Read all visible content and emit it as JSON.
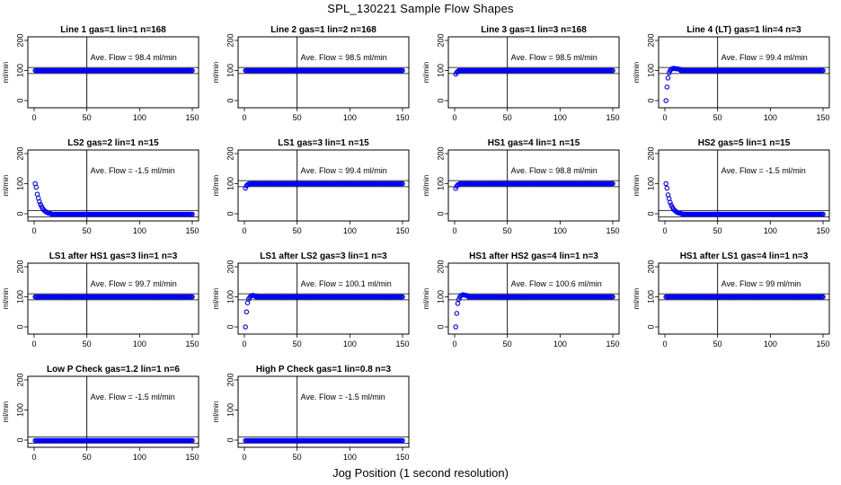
{
  "figure": {
    "title": "SPL_130221  Sample Flow Shapes",
    "xlabel": "Jog Position (1 second resolution)"
  },
  "chart_data": [
    {
      "type": "scatter",
      "title": "Line 1 gas=1 lin=1 n=168",
      "ylabel": "ml/min",
      "annotation": "Ave. Flow = 98.4  ml/min",
      "xlim": [
        0,
        150
      ],
      "ylim": [
        0,
        200
      ],
      "xticks": [
        0,
        50,
        100,
        150
      ],
      "yticks": [
        0,
        100,
        200
      ],
      "vline": 50,
      "hlines": [
        90,
        110
      ],
      "shape": "flat",
      "points": {
        "x_range": [
          1,
          150
        ],
        "steady_value": 100,
        "initial": []
      },
      "colors": {
        "points": "#0000ff"
      }
    },
    {
      "type": "scatter",
      "title": "Line 2 gas=1 lin=2 n=168",
      "ylabel": "ml/min",
      "annotation": "Ave. Flow = 98.5  ml/min",
      "xlim": [
        0,
        150
      ],
      "ylim": [
        0,
        200
      ],
      "xticks": [
        0,
        50,
        100,
        150
      ],
      "yticks": [
        0,
        100,
        200
      ],
      "vline": 50,
      "hlines": [
        90,
        110
      ],
      "shape": "flat",
      "points": {
        "x_range": [
          1,
          150
        ],
        "steady_value": 100,
        "initial": []
      },
      "colors": {
        "points": "#0000ff"
      }
    },
    {
      "type": "scatter",
      "title": "Line 3 gas=1 lin=3 n=168",
      "ylabel": "ml/min",
      "annotation": "Ave. Flow = 98.5  ml/min",
      "xlim": [
        0,
        150
      ],
      "ylim": [
        0,
        200
      ],
      "xticks": [
        0,
        50,
        100,
        150
      ],
      "yticks": [
        0,
        100,
        200
      ],
      "vline": 50,
      "hlines": [
        90,
        110
      ],
      "shape": "rise",
      "points": {
        "x_range": [
          1,
          150
        ],
        "steady_value": 100,
        "initial": [
          [
            1,
            88
          ],
          [
            2,
            94
          ],
          [
            3,
            97
          ]
        ]
      },
      "colors": {
        "points": "#0000ff"
      }
    },
    {
      "type": "scatter",
      "title": "Line 4 (LT) gas=1 lin=4 n=3",
      "ylabel": "ml/min",
      "annotation": "Ave. Flow = 99.4  ml/min",
      "xlim": [
        0,
        150
      ],
      "ylim": [
        0,
        200
      ],
      "xticks": [
        0,
        50,
        100,
        150
      ],
      "yticks": [
        0,
        100,
        200
      ],
      "vline": 50,
      "hlines": [
        90,
        110
      ],
      "shape": "rise",
      "points": {
        "x_range": [
          1,
          150
        ],
        "steady_value": 100,
        "initial": [
          [
            1,
            0
          ],
          [
            2,
            45
          ],
          [
            3,
            75
          ],
          [
            4,
            92
          ],
          [
            5,
            100
          ],
          [
            6,
            104
          ],
          [
            7,
            106
          ],
          [
            8,
            107
          ],
          [
            9,
            107
          ],
          [
            10,
            106
          ],
          [
            11,
            106
          ],
          [
            12,
            105
          ],
          [
            13,
            105
          ],
          [
            14,
            104
          ]
        ]
      },
      "colors": {
        "points": "#0000ff"
      }
    },
    {
      "type": "scatter",
      "title": "LS2 gas=2 lin=1 n=15",
      "ylabel": "ml/min",
      "annotation": "Ave. Flow = -1.5  ml/min",
      "xlim": [
        0,
        150
      ],
      "ylim": [
        0,
        200
      ],
      "xticks": [
        0,
        50,
        100,
        150
      ],
      "yticks": [
        0,
        100,
        200
      ],
      "vline": 50,
      "hlines": [
        -10,
        10
      ],
      "shape": "decay",
      "points": {
        "x_range": [
          1,
          150
        ],
        "steady_value": -1.5,
        "initial": [
          [
            1,
            100
          ],
          [
            2,
            88
          ],
          [
            3,
            65
          ],
          [
            4,
            52
          ],
          [
            5,
            40
          ],
          [
            6,
            31
          ],
          [
            7,
            24
          ],
          [
            8,
            18
          ],
          [
            9,
            13
          ],
          [
            10,
            10
          ],
          [
            11,
            7
          ],
          [
            12,
            5
          ],
          [
            13,
            3
          ],
          [
            14,
            2
          ],
          [
            15,
            1
          ],
          [
            16,
            0
          ]
        ]
      },
      "colors": {
        "points": "#0000ff"
      }
    },
    {
      "type": "scatter",
      "title": "LS1 gas=3 lin=1 n=15",
      "ylabel": "ml/min",
      "annotation": "Ave. Flow = 99.4  ml/min",
      "xlim": [
        0,
        150
      ],
      "ylim": [
        0,
        200
      ],
      "xticks": [
        0,
        50,
        100,
        150
      ],
      "yticks": [
        0,
        100,
        200
      ],
      "vline": 50,
      "hlines": [
        90,
        110
      ],
      "shape": "rise",
      "points": {
        "x_range": [
          1,
          150
        ],
        "steady_value": 100,
        "initial": [
          [
            1,
            85
          ],
          [
            2,
            93
          ],
          [
            3,
            97
          ],
          [
            4,
            99
          ]
        ]
      },
      "colors": {
        "points": "#0000ff"
      }
    },
    {
      "type": "scatter",
      "title": "HS1 gas=4 lin=1 n=15",
      "ylabel": "ml/min",
      "annotation": "Ave. Flow = 98.8  ml/min",
      "xlim": [
        0,
        150
      ],
      "ylim": [
        0,
        200
      ],
      "xticks": [
        0,
        50,
        100,
        150
      ],
      "yticks": [
        0,
        100,
        200
      ],
      "vline": 50,
      "hlines": [
        90,
        110
      ],
      "shape": "rise",
      "points": {
        "x_range": [
          1,
          150
        ],
        "steady_value": 100,
        "initial": [
          [
            1,
            84
          ],
          [
            2,
            92
          ],
          [
            3,
            96
          ],
          [
            4,
            98
          ]
        ]
      },
      "colors": {
        "points": "#0000ff"
      }
    },
    {
      "type": "scatter",
      "title": "HS2 gas=5 lin=1 n=15",
      "ylabel": "ml/min",
      "annotation": "Ave. Flow = -1.5  ml/min",
      "xlim": [
        0,
        150
      ],
      "ylim": [
        0,
        200
      ],
      "xticks": [
        0,
        50,
        100,
        150
      ],
      "yticks": [
        0,
        100,
        200
      ],
      "vline": 50,
      "hlines": [
        -10,
        10
      ],
      "shape": "decay",
      "points": {
        "x_range": [
          1,
          150
        ],
        "steady_value": -1.5,
        "initial": [
          [
            1,
            100
          ],
          [
            2,
            85
          ],
          [
            3,
            63
          ],
          [
            4,
            50
          ],
          [
            5,
            38
          ],
          [
            6,
            29
          ],
          [
            7,
            22
          ],
          [
            8,
            16
          ],
          [
            9,
            12
          ],
          [
            10,
            9
          ],
          [
            11,
            6
          ],
          [
            12,
            4
          ],
          [
            13,
            3
          ],
          [
            14,
            2
          ],
          [
            15,
            1
          ],
          [
            16,
            0
          ]
        ]
      },
      "colors": {
        "points": "#0000ff"
      }
    },
    {
      "type": "scatter",
      "title": "LS1 after HS1 gas=3 lin=1 n=3",
      "ylabel": "ml/min",
      "annotation": "Ave. Flow = 99.7  ml/min",
      "xlim": [
        0,
        150
      ],
      "ylim": [
        0,
        200
      ],
      "xticks": [
        0,
        50,
        100,
        150
      ],
      "yticks": [
        0,
        100,
        200
      ],
      "vline": 50,
      "hlines": [
        90,
        110
      ],
      "shape": "flat",
      "points": {
        "x_range": [
          1,
          150
        ],
        "steady_value": 100,
        "initial": []
      },
      "colors": {
        "points": "#0000ff"
      }
    },
    {
      "type": "scatter",
      "title": "LS1 after LS2 gas=3 lin=1 n=3",
      "ylabel": "ml/min",
      "annotation": "Ave. Flow = 100.1  ml/min",
      "xlim": [
        0,
        150
      ],
      "ylim": [
        0,
        200
      ],
      "xticks": [
        0,
        50,
        100,
        150
      ],
      "yticks": [
        0,
        100,
        200
      ],
      "vline": 50,
      "hlines": [
        90,
        110
      ],
      "shape": "rise",
      "points": {
        "x_range": [
          1,
          150
        ],
        "steady_value": 100,
        "initial": [
          [
            1,
            0
          ],
          [
            2,
            50
          ],
          [
            3,
            80
          ],
          [
            4,
            92
          ],
          [
            5,
            98
          ],
          [
            6,
            102
          ],
          [
            7,
            104
          ],
          [
            8,
            105
          ],
          [
            9,
            104
          ],
          [
            10,
            103
          ]
        ]
      },
      "colors": {
        "points": "#0000ff"
      }
    },
    {
      "type": "scatter",
      "title": "HS1 after HS2 gas=4 lin=1 n=3",
      "ylabel": "ml/min",
      "annotation": "Ave. Flow = 100.6  ml/min",
      "xlim": [
        0,
        150
      ],
      "ylim": [
        0,
        200
      ],
      "xticks": [
        0,
        50,
        100,
        150
      ],
      "yticks": [
        0,
        100,
        200
      ],
      "vline": 50,
      "hlines": [
        90,
        110
      ],
      "shape": "rise",
      "points": {
        "x_range": [
          1,
          150
        ],
        "steady_value": 100,
        "initial": [
          [
            1,
            0
          ],
          [
            2,
            45
          ],
          [
            3,
            78
          ],
          [
            4,
            92
          ],
          [
            5,
            100
          ],
          [
            6,
            104
          ],
          [
            7,
            106
          ],
          [
            8,
            107
          ],
          [
            9,
            106
          ],
          [
            10,
            105
          ],
          [
            11,
            105
          ],
          [
            12,
            104
          ]
        ]
      },
      "colors": {
        "points": "#0000ff"
      }
    },
    {
      "type": "scatter",
      "title": "HS1 after LS1 gas=4 lin=1 n=3",
      "ylabel": "ml/min",
      "annotation": "Ave. Flow = 99  ml/min",
      "xlim": [
        0,
        150
      ],
      "ylim": [
        0,
        200
      ],
      "xticks": [
        0,
        50,
        100,
        150
      ],
      "yticks": [
        0,
        100,
        200
      ],
      "vline": 50,
      "hlines": [
        90,
        110
      ],
      "shape": "flat",
      "points": {
        "x_range": [
          1,
          150
        ],
        "steady_value": 100,
        "initial": []
      },
      "colors": {
        "points": "#0000ff"
      }
    },
    {
      "type": "scatter",
      "title": "Low P Check gas=1.2 lin=1 n=6",
      "ylabel": "ml/min",
      "annotation": "Ave. Flow = -1.5  ml/min",
      "xlim": [
        0,
        150
      ],
      "ylim": [
        0,
        200
      ],
      "xticks": [
        0,
        50,
        100,
        150
      ],
      "yticks": [
        0,
        100,
        200
      ],
      "vline": 50,
      "hlines": [
        -10,
        10
      ],
      "shape": "flat",
      "points": {
        "x_range": [
          1,
          150
        ],
        "steady_value": -1.5,
        "initial": []
      },
      "colors": {
        "points": "#0000ff"
      }
    },
    {
      "type": "scatter",
      "title": "High P Check gas=1 lin=0.8 n=3",
      "ylabel": "ml/min",
      "annotation": "Ave. Flow = -1.5  ml/min",
      "xlim": [
        0,
        150
      ],
      "ylim": [
        0,
        200
      ],
      "xticks": [
        0,
        50,
        100,
        150
      ],
      "yticks": [
        0,
        100,
        200
      ],
      "vline": 50,
      "hlines": [
        -10,
        10
      ],
      "shape": "flat",
      "points": {
        "x_range": [
          1,
          150
        ],
        "steady_value": -1.5,
        "initial": []
      },
      "colors": {
        "points": "#0000ff"
      }
    }
  ]
}
